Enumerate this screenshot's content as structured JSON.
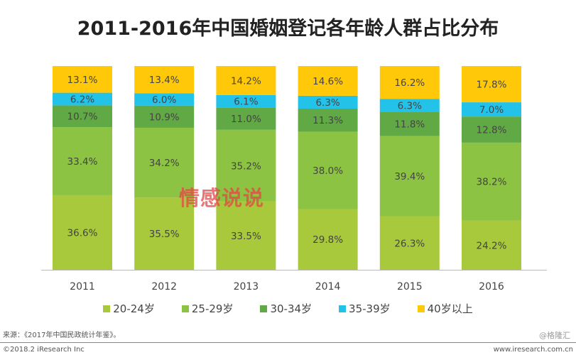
{
  "chart_data": {
    "type": "bar",
    "stacked": true,
    "title": "2011-2016年中国婚姻登记各年龄人群占比分布",
    "categories": [
      "2011",
      "2012",
      "2013",
      "2014",
      "2015",
      "2016"
    ],
    "legend_position": "bottom",
    "grid": false,
    "series": [
      {
        "name": "20-24岁",
        "color": "#a8c93c",
        "values": [
          36.6,
          35.5,
          33.5,
          29.8,
          26.3,
          24.2
        ],
        "labels": [
          "36.6%",
          "35.5%",
          "33.5%",
          "29.8%",
          "26.3%",
          "24.2%"
        ]
      },
      {
        "name": "25-29岁",
        "color": "#8cc342",
        "values": [
          33.4,
          34.2,
          35.2,
          38.0,
          39.4,
          38.2
        ],
        "labels": [
          "33.4%",
          "34.2%",
          "35.2%",
          "38.0%",
          "39.4%",
          "38.2%"
        ]
      },
      {
        "name": "30-34岁",
        "color": "#60a944",
        "values": [
          10.7,
          10.9,
          11.0,
          11.3,
          11.8,
          12.8
        ],
        "labels": [
          "10.7%",
          "10.9%",
          "11.0%",
          "11.3%",
          "11.8%",
          "12.8%"
        ]
      },
      {
        "name": "35-39岁",
        "color": "#23c2e8",
        "values": [
          6.2,
          6.0,
          6.1,
          6.3,
          6.3,
          7.0
        ],
        "labels": [
          "6.2%",
          "6.0%",
          "6.1%",
          "6.3%",
          "6.3%",
          "7.0%"
        ]
      },
      {
        "name": "40岁以上",
        "color": "#ffc90a",
        "values": [
          13.1,
          13.4,
          14.2,
          14.6,
          16.2,
          17.8
        ],
        "labels": [
          "13.1%",
          "13.4%",
          "14.2%",
          "14.6%",
          "16.2%",
          "17.8%"
        ]
      }
    ]
  },
  "footer": {
    "source": "来源：《2017年中国民政统计年鉴》。",
    "copyright": "©2018.2 iResearch Inc",
    "site": "www.iresearch.com.cn"
  },
  "watermarks": {
    "center": "情感说说",
    "corner": "@格隆汇"
  }
}
